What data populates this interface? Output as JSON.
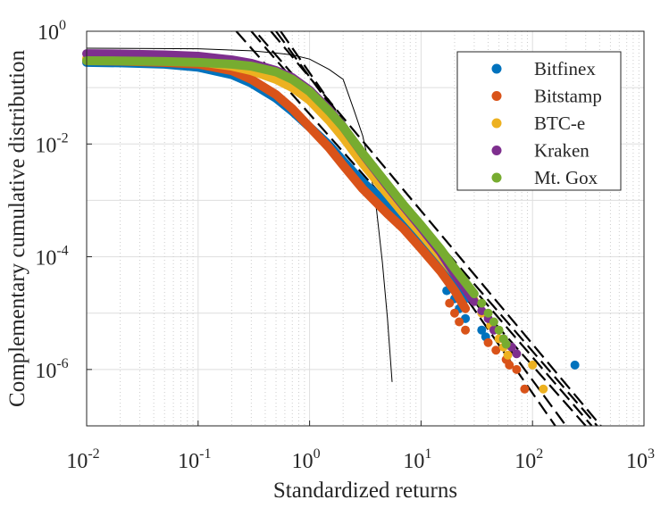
{
  "chart_data": {
    "type": "scatter",
    "title": "",
    "xlabel": "Standardized returns",
    "ylabel": "Complementary cumulative distribution",
    "xscale": "log",
    "yscale": "log",
    "xlim": [
      0.01,
      1000
    ],
    "ylim": [
      1e-07,
      1
    ],
    "grid": true,
    "legend_position": "top-right",
    "x_tick_labels": [
      {
        "base": "10",
        "exp": "-2"
      },
      {
        "base": "10",
        "exp": "-1"
      },
      {
        "base": "10",
        "exp": "0"
      },
      {
        "base": "10",
        "exp": "1"
      },
      {
        "base": "10",
        "exp": "2"
      },
      {
        "base": "10",
        "exp": "3"
      }
    ],
    "y_tick_labels": [
      {
        "base": "10",
        "exp": "-6"
      },
      {
        "base": "10",
        "exp": "-4"
      },
      {
        "base": "10",
        "exp": "-2"
      },
      {
        "base": "10",
        "exp": "0"
      }
    ],
    "series": [
      {
        "name": "Bitfinex",
        "color": "#0072BD",
        "x": [
          0.01,
          0.02,
          0.05,
          0.1,
          0.2,
          0.3,
          0.5,
          0.7,
          1,
          1.5,
          2,
          3,
          5,
          7,
          10,
          15,
          20,
          25
        ],
        "y": [
          0.28,
          0.275,
          0.26,
          0.23,
          0.17,
          0.12,
          0.065,
          0.038,
          0.02,
          0.0095,
          0.005,
          0.0021,
          0.00085,
          0.00045,
          0.00021,
          8.5e-05,
          3.8e-05,
          1.8e-05
        ],
        "tail_points": [
          [
            17,
            2.5e-05
          ],
          [
            20,
            1.8e-05
          ],
          [
            22,
            1.2e-05
          ],
          [
            25,
            8e-06
          ],
          [
            35,
            5e-06
          ],
          [
            38,
            3.8e-06
          ],
          [
            240,
            1.2e-06
          ]
        ]
      },
      {
        "name": "Bitstamp",
        "color": "#D95319",
        "x": [
          0.01,
          0.02,
          0.05,
          0.1,
          0.2,
          0.3,
          0.5,
          0.7,
          1,
          1.5,
          2,
          3,
          5,
          7,
          10,
          15,
          20,
          25
        ],
        "y": [
          0.3,
          0.295,
          0.28,
          0.26,
          0.2,
          0.14,
          0.075,
          0.042,
          0.02,
          0.0085,
          0.0042,
          0.0016,
          0.00058,
          0.00031,
          0.00014,
          5.5e-05,
          2.5e-05,
          1.2e-05
        ],
        "tail_points": [
          [
            18,
            1.5e-05
          ],
          [
            20,
            1e-05
          ],
          [
            22,
            7e-06
          ],
          [
            25,
            5e-06
          ],
          [
            40,
            3e-06
          ],
          [
            47,
            2.2e-06
          ],
          [
            58,
            1.5e-06
          ],
          [
            62,
            1.2e-06
          ],
          [
            72,
            1e-06
          ],
          [
            85,
            4.5e-07
          ]
        ]
      },
      {
        "name": "BTC-e",
        "color": "#EDB120",
        "x": [
          0.01,
          0.02,
          0.05,
          0.1,
          0.2,
          0.3,
          0.5,
          0.7,
          1,
          1.5,
          2,
          3,
          5,
          7,
          10,
          15,
          20,
          25,
          30
        ],
        "y": [
          0.33,
          0.325,
          0.31,
          0.29,
          0.24,
          0.2,
          0.14,
          0.1,
          0.06,
          0.026,
          0.013,
          0.0045,
          0.0013,
          0.00058,
          0.00026,
          0.0001,
          5e-05,
          2.8e-05,
          1.7e-05
        ],
        "tail_points": [
          [
            35,
            1e-05
          ],
          [
            42,
            6e-06
          ],
          [
            50,
            3.5e-06
          ],
          [
            55,
            2.5e-06
          ],
          [
            60,
            1.8e-06
          ],
          [
            100,
            1.2e-06
          ],
          [
            125,
            4.5e-07
          ]
        ]
      },
      {
        "name": "Kraken",
        "color": "#7E2F8E",
        "x": [
          0.01,
          0.02,
          0.05,
          0.1,
          0.2,
          0.3,
          0.5,
          0.7,
          1,
          1.5,
          2,
          3,
          5,
          7,
          10,
          15,
          20,
          25,
          30
        ],
        "y": [
          0.4,
          0.395,
          0.38,
          0.36,
          0.31,
          0.27,
          0.2,
          0.15,
          0.09,
          0.04,
          0.02,
          0.0067,
          0.0018,
          0.00078,
          0.00033,
          0.00012,
          5e-05,
          2.7e-05,
          1.6e-05
        ],
        "tail_points": [
          [
            35,
            1.1e-05
          ],
          [
            40,
            8e-06
          ],
          [
            45,
            5e-06
          ],
          [
            55,
            3.5e-06
          ],
          [
            65,
            2.5e-06
          ],
          [
            72,
            1.9e-06
          ]
        ]
      },
      {
        "name": "Mt. Gox",
        "color": "#77AC30",
        "x": [
          0.01,
          0.02,
          0.05,
          0.1,
          0.2,
          0.3,
          0.5,
          0.7,
          1,
          1.5,
          2,
          3,
          5,
          7,
          10,
          15,
          20,
          25,
          30
        ],
        "y": [
          0.3,
          0.298,
          0.29,
          0.28,
          0.26,
          0.24,
          0.19,
          0.14,
          0.085,
          0.038,
          0.02,
          0.0068,
          0.0019,
          0.00082,
          0.00036,
          0.000135,
          6.2e-05,
          3.5e-05,
          2.2e-05
        ],
        "tail_points": [
          [
            35,
            1.5e-05
          ],
          [
            40,
            1e-05
          ],
          [
            45,
            7e-06
          ],
          [
            50,
            5e-06
          ],
          [
            55,
            3.5e-06
          ],
          [
            58,
            2.8e-06
          ]
        ]
      }
    ],
    "power_law_fits": [
      {
        "from": [
          0.22,
          1
        ],
        "to": [
          300,
          1e-07
        ]
      },
      {
        "from": [
          0.3,
          1
        ],
        "to": [
          340,
          1e-07
        ]
      },
      {
        "from": [
          0.35,
          0.85
        ],
        "to": [
          380,
          1e-07
        ]
      },
      {
        "from": [
          0.45,
          1
        ],
        "to": [
          410,
          1e-07
        ]
      },
      {
        "from": [
          0.5,
          1
        ],
        "to": [
          200,
          1e-07
        ]
      },
      {
        "from": [
          0.55,
          1
        ],
        "to": [
          160,
          1e-07
        ]
      }
    ],
    "normal_reference": {
      "x": [
        0.01,
        0.1,
        0.3,
        0.5,
        0.7,
        1,
        1.5,
        2,
        2.5,
        3,
        3.5,
        4,
        4.5,
        5,
        5.5
      ],
      "y": [
        0.5,
        0.49,
        0.45,
        0.41,
        0.38,
        0.32,
        0.21,
        0.14,
        0.04,
        0.014,
        0.0035,
        0.00065,
        8e-05,
        8e-06,
        6e-07
      ]
    }
  }
}
